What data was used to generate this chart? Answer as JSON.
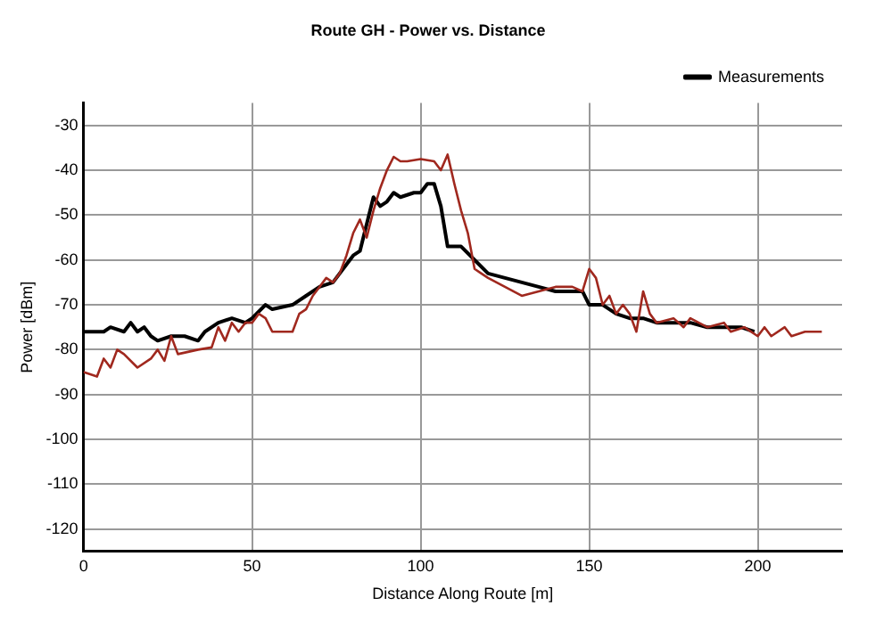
{
  "chart_data": {
    "type": "line",
    "title": "Route GH - Power vs. Distance",
    "xlabel": "Distance Along Route [m]",
    "ylabel": "Power [dBm]",
    "xlim": [
      0,
      225
    ],
    "xticks": [
      0,
      50,
      100,
      150,
      200
    ],
    "ylim": [
      -125,
      -25
    ],
    "yticks": [
      -30,
      -40,
      -50,
      -60,
      -70,
      -80,
      -90,
      -100,
      -110,
      -120
    ],
    "grid": true,
    "legend": "top right",
    "marker": "none",
    "line_style": "solid",
    "series": [
      {
        "color": "#a0281e",
        "x": [
          0,
          2,
          4,
          6,
          8,
          10,
          12,
          16,
          20,
          22,
          24,
          26,
          28,
          34,
          38,
          40,
          42,
          44,
          46,
          48,
          50,
          52,
          54,
          56,
          62,
          64,
          66,
          68,
          70,
          72,
          74,
          76,
          78,
          80,
          82,
          84,
          86,
          88,
          90,
          92,
          94,
          96,
          100,
          104,
          106,
          108,
          110,
          112,
          114,
          116,
          118,
          120,
          125,
          130,
          135,
          140,
          145,
          148,
          150,
          152,
          154,
          156,
          158,
          160,
          162,
          164,
          166,
          168,
          170,
          175,
          178,
          180,
          185,
          190,
          192,
          196,
          200,
          202,
          204,
          208,
          210,
          214,
          219
        ],
        "values": [
          -85,
          -85.5,
          -86,
          -82,
          -84,
          -80,
          -81,
          -84,
          -82,
          -80,
          -82.5,
          -77,
          -81,
          -80,
          -79.5,
          -75,
          -78,
          -74,
          -76,
          -74,
          -74,
          -72,
          -73,
          -76,
          -76,
          -72,
          -71,
          -68,
          -66,
          -64,
          -65,
          -63,
          -59,
          -54,
          -51,
          -55,
          -49,
          -44,
          -40,
          -37,
          -38,
          -38,
          -37.5,
          -38,
          -40,
          -36.5,
          -43,
          -49,
          -54,
          -62,
          -63,
          -64,
          -66,
          -68,
          -67,
          -66,
          -66,
          -67,
          -62,
          -64,
          -70,
          -68,
          -72,
          -70,
          -72,
          -76,
          -67,
          -72,
          -74,
          -73,
          -75,
          -73,
          -75,
          -74,
          -76,
          -75,
          -77,
          -75,
          -77,
          -75,
          -77,
          -76,
          -76
        ]
      },
      {
        "name": "Measurements",
        "color": "#000000",
        "x": [
          0,
          6,
          8,
          12,
          14,
          16,
          18,
          20,
          22,
          26,
          30,
          34,
          36,
          40,
          44,
          48,
          50,
          54,
          56,
          62,
          66,
          70,
          74,
          78,
          80,
          82,
          84,
          86,
          88,
          90,
          92,
          94,
          98,
          100,
          102,
          104,
          106,
          108,
          112,
          116,
          120,
          125,
          130,
          135,
          140,
          145,
          148,
          150,
          154,
          158,
          162,
          166,
          170,
          175,
          180,
          185,
          190,
          195,
          199
        ],
        "values": [
          -76,
          -76,
          -75,
          -76,
          -74,
          -76,
          -75,
          -77,
          -78,
          -77,
          -77,
          -78,
          -76,
          -74,
          -73,
          -74,
          -73,
          -70,
          -71,
          -70,
          -68,
          -66,
          -65,
          -61,
          -59,
          -58,
          -52,
          -46,
          -48,
          -47,
          -45,
          -46,
          -45,
          -45,
          -43,
          -43,
          -48,
          -57,
          -57,
          -60,
          -63,
          -64,
          -65,
          -66,
          -67,
          -67,
          -67,
          -70,
          -70,
          -72,
          -73,
          -73,
          -74,
          -74,
          -74,
          -75,
          -75,
          -75,
          -76
        ]
      }
    ]
  }
}
